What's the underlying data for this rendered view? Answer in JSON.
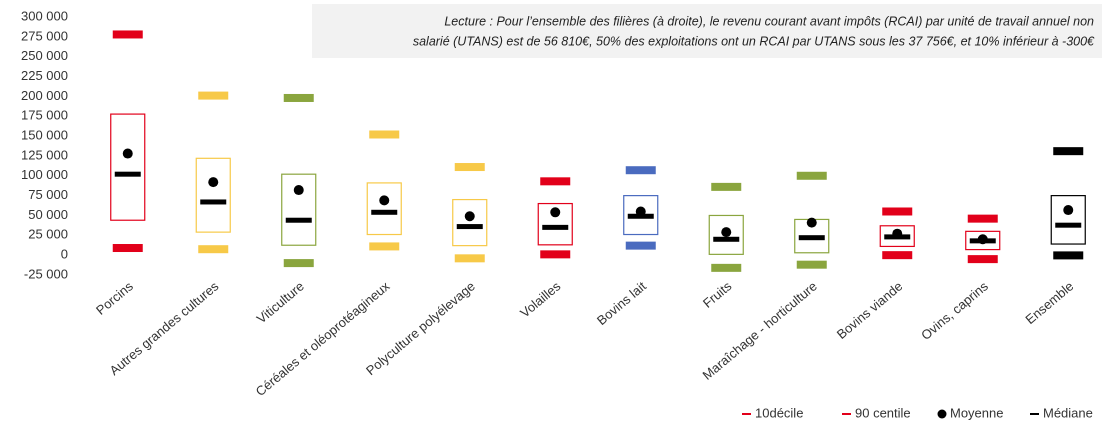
{
  "chart_data": {
    "type": "box",
    "annotation": [
      "Lecture : Pour l’ensemble des filières (à droite), le revenu courant avant impôts (RCAI) par unité de travail annuel non",
      "salarié (UTANS) est de 56 810€, 50% des exploitations ont un RCAI par UTANS sous les 37 756€, et 10% inférieur à -300€"
    ],
    "categories": [
      "Porcins",
      "Autres grandes cultures",
      "Viticulture",
      "Céréales et oléoprotéagineux",
      "Polyculture polyélevage",
      "Volailles",
      "Bovins lait",
      "Fruits",
      "Maraîchage - horticulture",
      "Bovins viande",
      "Ovins, caprins",
      "Ensemble"
    ],
    "colors": [
      "#e2001a",
      "#f7c948",
      "#8aa53e",
      "#f7c948",
      "#f7c948",
      "#e2001a",
      "#4a6bbf",
      "#8aa53e",
      "#8aa53e",
      "#e2001a",
      "#e2001a",
      "#000000"
    ],
    "boxes": {
      "low": [
        44000,
        29000,
        12500,
        26000,
        12000,
        13000,
        26000,
        1000,
        3000,
        11000,
        7000,
        14000
      ],
      "high": [
        177700,
        122000,
        102000,
        91000,
        70000,
        65000,
        75000,
        50000,
        45000,
        37000,
        30000,
        75000
      ]
    },
    "series": [
      {
        "name": "10décile",
        "color": "#e2001a",
        "marker": "bar",
        "values": [
          9000,
          7500,
          -10000,
          11000,
          -4000,
          1000,
          12000,
          -16000,
          -12000,
          0,
          -5000,
          -300
        ]
      },
      {
        "name": "90 centile",
        "color": "#e2001a",
        "marker": "bar",
        "values": [
          278000,
          201000,
          198000,
          152000,
          111000,
          93000,
          107000,
          86000,
          100000,
          55000,
          46000,
          131000
        ]
      },
      {
        "name": "Moyenne",
        "color": "#000000",
        "marker": "dot",
        "values": [
          128000,
          92000,
          82000,
          69000,
          49000,
          54000,
          55000,
          29000,
          41000,
          27000,
          20000,
          56810
        ]
      },
      {
        "name": "Médiane",
        "color": "#000000",
        "marker": "median",
        "values": [
          102000,
          67000,
          44000,
          54000,
          36000,
          35000,
          49000,
          20000,
          22000,
          23000,
          18000,
          37756
        ]
      }
    ],
    "ylim": [
      -25000,
      300000
    ],
    "yticks": [
      {
        "value": -25000,
        "label": "-25 000"
      },
      0,
      {
        "value": 25000,
        "label": "25 000"
      },
      {
        "value": 50000,
        "label": "50 000"
      },
      {
        "value": 75000,
        "label": "75 000"
      },
      {
        "value": 100000,
        "label": "100 000"
      },
      {
        "value": 125000,
        "label": "125 000"
      },
      {
        "value": 150000,
        "label": "150 000"
      },
      {
        "value": 175000,
        "label": "175 000"
      },
      {
        "value": 200000,
        "label": "200 000"
      },
      {
        "value": 225000,
        "label": "225 000"
      },
      {
        "value": 250000,
        "label": "250 000"
      },
      {
        "value": 275000,
        "label": "275 000"
      },
      {
        "value": 300000,
        "label": "300 000"
      }
    ]
  }
}
